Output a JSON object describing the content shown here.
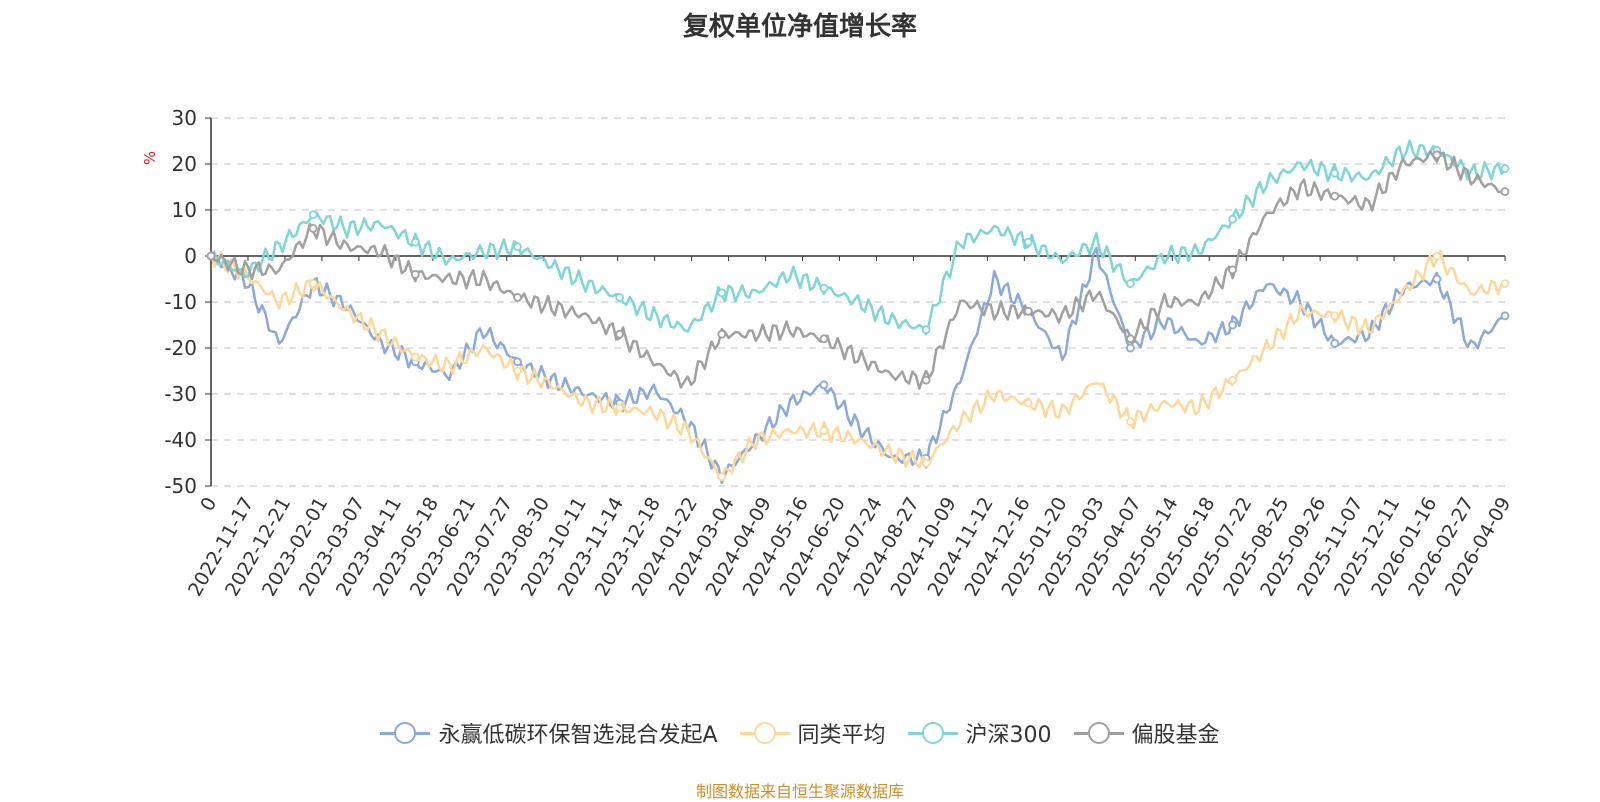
{
  "chart_data": {
    "type": "line",
    "title": "复权单位净值增长率",
    "ylabel": "%",
    "xlabel": "",
    "ylim": [
      -50,
      30
    ],
    "yticks": [
      30,
      20,
      10,
      0,
      -10,
      -20,
      -30,
      -40,
      -50
    ],
    "x_tick_labels": [
      "0",
      "2022-11-17",
      "2022-12-21",
      "2023-02-01",
      "2023-03-07",
      "2023-04-11",
      "2023-05-18",
      "2023-06-21",
      "2023-07-27",
      "2023-08-30",
      "2023-10-11",
      "2023-11-14",
      "2023-12-18",
      "2024-01-22",
      "2024-03-04",
      "2024-04-09",
      "2024-05-16",
      "2024-06-20",
      "2024-07-24",
      "2024-08-27",
      "2024-10-09",
      "2024-11-12",
      "2024-12-16",
      "2025-01-20",
      "2025-03-03",
      "2025-04-07",
      "2025-05-14",
      "2025-06-18",
      "2025-07-22",
      "2025-08-25",
      "2025-09-26",
      "2025-11-07",
      "2025-12-11",
      "2026-01-16",
      "2026-02-27",
      "2026-04-09"
    ],
    "series": [
      {
        "name": "永赢低碳环保智选混合发起A",
        "color": "#8aa9d9",
        "values": [
          0,
          -5,
          -19,
          -6,
          -11,
          -19,
          -23,
          -26,
          -16,
          -23,
          -27,
          -30,
          -32,
          -29,
          -36,
          -48,
          -40,
          -32,
          -28,
          -37,
          -44,
          -44,
          -27,
          -5,
          -12,
          -22,
          1,
          -20,
          -14,
          -19,
          -15,
          -6,
          -10,
          -19,
          -17,
          -7,
          -5,
          -20,
          -13
        ]
      },
      {
        "name": "同类平均",
        "color": "#fdd79a",
        "values": [
          0,
          -4,
          -10,
          -6,
          -12,
          -17,
          -22,
          -24,
          -20,
          -25,
          -28,
          -32,
          -33,
          -34,
          -38,
          -48,
          -40,
          -38,
          -38,
          -40,
          -43,
          -45,
          -36,
          -30,
          -32,
          -34,
          -27,
          -36,
          -32,
          -33,
          -27,
          -20,
          -12,
          -13,
          -16,
          -8,
          0,
          -8,
          -6
        ]
      },
      {
        "name": "沪深300",
        "color": "#7fd5d5",
        "values": [
          0,
          -4,
          2,
          9,
          6,
          7,
          3,
          -1,
          1,
          2,
          -2,
          -6,
          -9,
          -13,
          -16,
          -8,
          -8,
          -4,
          -7,
          -10,
          -14,
          -16,
          3,
          6,
          3,
          -1,
          3,
          -6,
          0,
          1,
          8,
          16,
          20,
          18,
          17,
          23,
          23,
          18,
          19
        ]
      },
      {
        "name": "偏股基金",
        "color": "#a0a0a0",
        "values": [
          0,
          -3,
          -3,
          6,
          2,
          1,
          -4,
          -5,
          -5,
          -9,
          -11,
          -13,
          -17,
          -23,
          -28,
          -17,
          -17,
          -16,
          -18,
          -22,
          -26,
          -27,
          -10,
          -12,
          -12,
          -13,
          -8,
          -18,
          -10,
          -10,
          -3,
          9,
          15,
          13,
          11,
          20,
          22,
          17,
          14
        ]
      }
    ]
  },
  "legend": [
    "永赢低碳环保智选混合发起A",
    "同类平均",
    "沪深300",
    "偏股基金"
  ],
  "source": "制图数据来自恒生聚源数据库"
}
